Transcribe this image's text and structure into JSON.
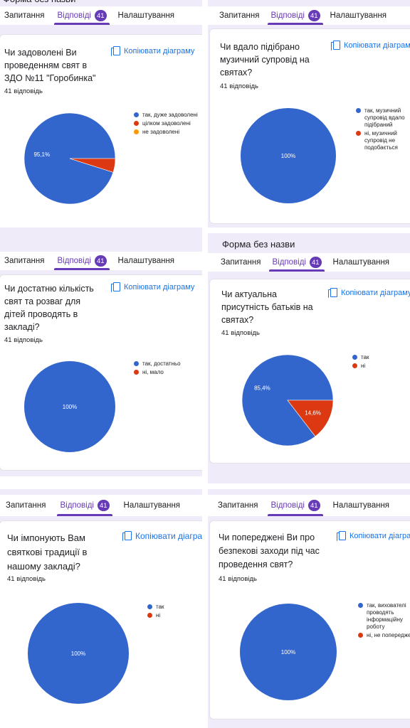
{
  "form_title": "Форма без назви",
  "tabs": {
    "questions": "Запитання",
    "responses": "Відповіді",
    "settings": "Налаштування",
    "responses_count": "41"
  },
  "copy_label": "Копіювати діаграму",
  "colors": {
    "blue": "#3366cc",
    "red": "#dc3912",
    "orange": "#ff9900",
    "accent": "#673ab7",
    "link": "#1a73e8"
  },
  "cards": [
    {
      "question": "Чи задоволені Ви проведенням свят в ЗДО №11 \"Горобинка\"",
      "responses": "41 відповідь",
      "chart_data": {
        "type": "pie",
        "labels": [
          "так, дуже задоволені",
          "цілком задоволені",
          "не задоволені"
        ],
        "values": [
          95.1,
          4.9,
          0
        ],
        "slice_labels": [
          "95,1%",
          "",
          ""
        ],
        "colors": [
          "#3366cc",
          "#dc3912",
          "#ff9900"
        ],
        "legend_position": "right"
      }
    },
    {
      "question": "Чи вдало підібрано музичний супровід на святах?",
      "responses": "41 відповідь",
      "chart_data": {
        "type": "pie",
        "labels": [
          "так, музичний супровід вдало підібраний",
          "ні, музичний супровід не подобається"
        ],
        "values": [
          100,
          0
        ],
        "slice_labels": [
          "100%",
          ""
        ],
        "colors": [
          "#3366cc",
          "#dc3912"
        ],
        "legend_position": "right"
      }
    },
    {
      "question": "Чи достатню кількість свят та розваг для дітей проводять в закладі?",
      "responses": "41 відповідь",
      "chart_data": {
        "type": "pie",
        "labels": [
          "так, достатньо",
          "ні, мало"
        ],
        "values": [
          100,
          0
        ],
        "slice_labels": [
          "100%",
          ""
        ],
        "colors": [
          "#3366cc",
          "#dc3912"
        ],
        "legend_position": "right"
      }
    },
    {
      "question": "Чи актуальна присутність батьків на святах?",
      "responses": "41 відповідь",
      "chart_data": {
        "type": "pie",
        "labels": [
          "так",
          "ні"
        ],
        "values": [
          85.4,
          14.6
        ],
        "slice_labels": [
          "85,4%",
          "14,6%"
        ],
        "colors": [
          "#3366cc",
          "#dc3912"
        ],
        "legend_position": "right"
      }
    },
    {
      "question": "Чи імпонують Вам святкові традиції в нашому закладі?",
      "responses": "41 відповідь",
      "chart_data": {
        "type": "pie",
        "labels": [
          "так",
          "ні"
        ],
        "values": [
          100,
          0
        ],
        "slice_labels": [
          "100%",
          ""
        ],
        "colors": [
          "#3366cc",
          "#dc3912"
        ],
        "legend_position": "right"
      }
    },
    {
      "question": "Чи попереджені Ви про безпекові заходи під час проведення свят?",
      "responses": "41 відповідь",
      "chart_data": {
        "type": "pie",
        "labels": [
          "так, вихователі проводять інформаційну роботу",
          "ні, не попереджені"
        ],
        "values": [
          100,
          0
        ],
        "slice_labels": [
          "100%",
          ""
        ],
        "colors": [
          "#3366cc",
          "#dc3912"
        ],
        "legend_position": "right"
      }
    }
  ]
}
